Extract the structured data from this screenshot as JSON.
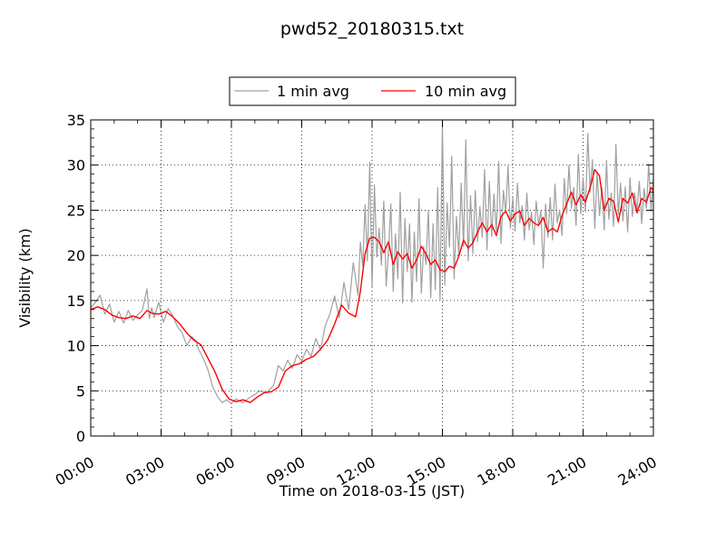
{
  "chart_data": {
    "type": "line",
    "title": "pwd52_20180315.txt",
    "xlabel": "Time on 2018-03-15 (JST)",
    "ylabel": "Visibility (km)",
    "xlim": [
      0,
      24
    ],
    "ylim": [
      0,
      35
    ],
    "x_tick_labels": [
      "00:00",
      "03:00",
      "06:00",
      "09:00",
      "12:00",
      "15:00",
      "18:00",
      "21:00",
      "24:00"
    ],
    "y_tick_labels": [
      "0",
      "5",
      "10",
      "15",
      "20",
      "25",
      "30",
      "35"
    ],
    "grid": true,
    "legend": {
      "position": "top-center",
      "columns": 2
    },
    "series": [
      {
        "name": "1 min avg",
        "color": "#a0a0a0",
        "x": [
          0,
          0.2,
          0.4,
          0.6,
          0.8,
          1.0,
          1.2,
          1.4,
          1.6,
          1.8,
          2.0,
          2.2,
          2.4,
          2.5,
          2.6,
          2.7,
          2.9,
          3.1,
          3.3,
          3.5,
          3.7,
          3.9,
          4.1,
          4.3,
          4.5,
          4.6,
          4.8,
          5.0,
          5.2,
          5.4,
          5.6,
          5.8,
          6.0,
          6.2,
          6.5,
          6.8,
          7.0,
          7.2,
          7.5,
          7.8,
          8.0,
          8.2,
          8.4,
          8.6,
          8.8,
          9.0,
          9.2,
          9.4,
          9.6,
          9.8,
          10.0,
          10.2,
          10.4,
          10.6,
          10.8,
          11.0,
          11.2,
          11.4,
          11.5,
          11.6,
          11.7,
          11.8,
          11.9,
          12.0,
          12.1,
          12.2,
          12.3,
          12.4,
          12.5,
          12.6,
          12.7,
          12.8,
          12.9,
          13.0,
          13.1,
          13.2,
          13.3,
          13.4,
          13.5,
          13.6,
          13.7,
          13.8,
          13.9,
          14.0,
          14.1,
          14.2,
          14.3,
          14.4,
          14.5,
          14.6,
          14.7,
          14.8,
          14.9,
          15.0,
          15.1,
          15.2,
          15.3,
          15.4,
          15.5,
          15.6,
          15.7,
          15.8,
          15.9,
          16.0,
          16.1,
          16.2,
          16.3,
          16.4,
          16.5,
          16.6,
          16.7,
          16.8,
          16.9,
          17.0,
          17.1,
          17.2,
          17.3,
          17.4,
          17.5,
          17.6,
          17.7,
          17.8,
          17.9,
          18.0,
          18.1,
          18.2,
          18.3,
          18.4,
          18.5,
          18.6,
          18.7,
          18.8,
          18.9,
          19.0,
          19.1,
          19.2,
          19.3,
          19.4,
          19.5,
          19.6,
          19.7,
          19.8,
          19.9,
          20.0,
          20.1,
          20.2,
          20.3,
          20.4,
          20.5,
          20.6,
          20.7,
          20.8,
          20.9,
          21.0,
          21.1,
          21.2,
          21.3,
          21.4,
          21.5,
          21.6,
          21.7,
          21.8,
          21.9,
          22.0,
          22.1,
          22.2,
          22.3,
          22.4,
          22.5,
          22.6,
          22.7,
          22.8,
          22.9,
          23.0,
          23.1,
          23.2,
          23.3,
          23.4,
          23.5,
          23.6,
          23.7,
          23.8,
          23.9,
          24.0
        ],
        "values": [
          14.2,
          14.8,
          15.6,
          13.5,
          14.6,
          12.6,
          13.8,
          12.5,
          13.9,
          12.8,
          13.4,
          13.9,
          16.3,
          13.0,
          14.2,
          13.1,
          14.8,
          12.6,
          14.1,
          13.3,
          12.1,
          11.4,
          10.0,
          11.0,
          10.5,
          9.6,
          8.6,
          7.3,
          5.5,
          4.4,
          3.7,
          4.0,
          3.6,
          4.1,
          3.7,
          4.3,
          4.6,
          5.0,
          4.8,
          5.6,
          7.8,
          7.2,
          8.4,
          7.5,
          9.0,
          8.3,
          9.6,
          8.8,
          10.8,
          9.5,
          12.2,
          13.5,
          15.5,
          13.1,
          17.0,
          14.0,
          19.2,
          15.6,
          21.5,
          18.8,
          25.6,
          19.4,
          30.3,
          16.5,
          27.8,
          19.8,
          23.0,
          18.9,
          26.0,
          16.6,
          20.5,
          25.7,
          16.0,
          22.4,
          17.4,
          27.0,
          14.7,
          24.1,
          18.2,
          23.5,
          14.8,
          22.6,
          17.1,
          26.3,
          15.8,
          21.0,
          19.0,
          25.0,
          15.3,
          23.5,
          16.2,
          27.5,
          15.0,
          34.5,
          16.7,
          25.8,
          20.9,
          31.0,
          17.4,
          24.3,
          20.0,
          28.0,
          21.0,
          32.8,
          19.4,
          26.6,
          20.2,
          27.2,
          21.5,
          25.4,
          22.0,
          29.5,
          20.6,
          28.2,
          22.1,
          26.8,
          22.6,
          30.4,
          21.3,
          27.2,
          24.8,
          29.9,
          23.0,
          26.4,
          22.7,
          28.0,
          23.6,
          25.5,
          21.7,
          26.9,
          22.8,
          24.8,
          21.2,
          26.0,
          23.4,
          24.9,
          18.6,
          25.7,
          22.0,
          26.4,
          21.7,
          27.9,
          23.6,
          25.0,
          22.2,
          28.5,
          24.6,
          30.0,
          25.2,
          27.5,
          23.3,
          31.2,
          24.6,
          28.6,
          24.8,
          33.5,
          27.0,
          30.6,
          23.0,
          29.2,
          24.4,
          27.5,
          22.8,
          30.5,
          24.0,
          26.9,
          23.2,
          32.3,
          24.5,
          28.0,
          23.8,
          27.6,
          22.6,
          28.6,
          24.3,
          26.9,
          25.0,
          28.2,
          23.5,
          27.4,
          25.2,
          30.1,
          24.9,
          28.5
        ]
      },
      {
        "name": "10 min avg",
        "color": "#ff0000",
        "x": [
          0,
          0.3,
          0.6,
          0.9,
          1.2,
          1.5,
          1.8,
          2.1,
          2.4,
          2.6,
          2.9,
          3.2,
          3.5,
          3.8,
          4.1,
          4.4,
          4.7,
          5.0,
          5.3,
          5.6,
          5.9,
          6.2,
          6.5,
          6.8,
          7.1,
          7.4,
          7.7,
          8.0,
          8.3,
          8.6,
          8.9,
          9.2,
          9.5,
          9.8,
          10.1,
          10.4,
          10.7,
          11.0,
          11.3,
          11.5,
          11.7,
          11.9,
          12.1,
          12.3,
          12.5,
          12.7,
          12.9,
          13.1,
          13.3,
          13.5,
          13.7,
          13.9,
          14.1,
          14.3,
          14.5,
          14.7,
          14.9,
          15.1,
          15.3,
          15.5,
          15.7,
          15.9,
          16.1,
          16.3,
          16.5,
          16.7,
          16.9,
          17.1,
          17.3,
          17.5,
          17.7,
          17.9,
          18.1,
          18.3,
          18.5,
          18.7,
          18.9,
          19.1,
          19.3,
          19.5,
          19.7,
          19.9,
          20.1,
          20.3,
          20.5,
          20.7,
          20.9,
          21.1,
          21.3,
          21.5,
          21.7,
          21.9,
          22.1,
          22.3,
          22.5,
          22.7,
          22.9,
          23.1,
          23.3,
          23.5,
          23.7,
          23.9,
          24.0
        ],
        "values": [
          14.0,
          14.3,
          14.0,
          13.4,
          13.1,
          13.0,
          13.3,
          13.0,
          13.9,
          13.6,
          13.5,
          13.8,
          13.2,
          12.4,
          11.4,
          10.6,
          10.1,
          8.6,
          7.1,
          5.2,
          4.1,
          3.8,
          4.0,
          3.7,
          4.3,
          4.8,
          4.9,
          5.4,
          7.2,
          7.8,
          8.0,
          8.5,
          8.8,
          9.6,
          10.6,
          12.4,
          14.5,
          13.6,
          13.2,
          16.0,
          20.2,
          21.9,
          22.0,
          21.5,
          20.3,
          21.5,
          19.0,
          20.4,
          19.6,
          20.2,
          18.6,
          19.5,
          21.0,
          20.2,
          19.0,
          19.5,
          18.4,
          18.2,
          18.8,
          18.6,
          19.9,
          21.7,
          20.8,
          21.4,
          22.6,
          23.6,
          22.6,
          23.4,
          22.2,
          24.3,
          24.9,
          23.8,
          24.6,
          24.9,
          23.3,
          24.1,
          23.6,
          23.3,
          24.2,
          22.6,
          23.0,
          22.6,
          24.4,
          25.7,
          27.0,
          25.6,
          26.7,
          25.9,
          27.5,
          29.5,
          28.8,
          25.0,
          26.3,
          26.0,
          23.7,
          26.3,
          25.8,
          26.9,
          24.7,
          26.3,
          25.9,
          27.5,
          27.2
        ]
      }
    ]
  }
}
